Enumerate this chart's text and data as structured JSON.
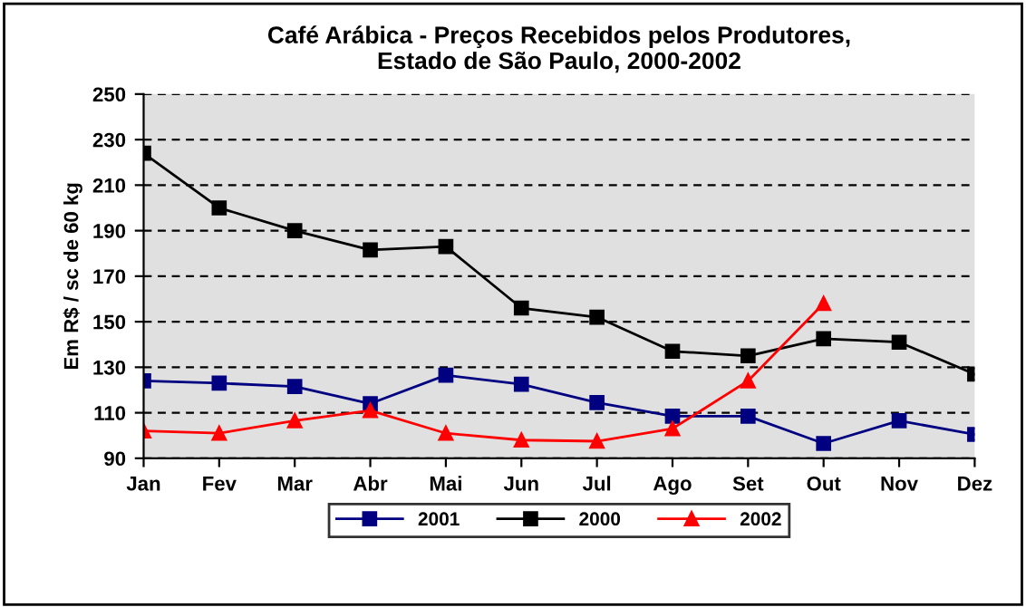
{
  "chart_data": {
    "type": "line",
    "title": "Café Arábica - Preços Recebidos pelos Produtores,\nEstado de São Paulo, 2000-2002",
    "ylabel": "Em R$ / sc de 60 kg",
    "categories": [
      "Jan",
      "Fev",
      "Mar",
      "Abr",
      "Mai",
      "Jun",
      "Jul",
      "Ago",
      "Set",
      "Out",
      "Nov",
      "Dez"
    ],
    "series": [
      {
        "name": "2001",
        "color": "#000080",
        "marker": "square",
        "values": [
          124,
          123,
          121.5,
          114,
          126.5,
          122.5,
          114.5,
          108.5,
          108.5,
          96.5,
          106.5,
          100.5
        ]
      },
      {
        "name": "2000",
        "color": "#000000",
        "marker": "square",
        "values": [
          224,
          200,
          190,
          181.5,
          183,
          156,
          152,
          137,
          135,
          142.5,
          141,
          127
        ]
      },
      {
        "name": "2002",
        "color": "#ff0000",
        "marker": "triangle",
        "values": [
          102,
          101,
          106.5,
          111,
          101,
          98,
          97.5,
          103,
          124,
          158,
          null,
          null
        ]
      }
    ],
    "ylim": [
      90,
      250
    ],
    "yticks": [
      90,
      110,
      130,
      150,
      170,
      190,
      210,
      230,
      250
    ],
    "grid": "y",
    "legend": "bottom",
    "line_style": "solid"
  }
}
